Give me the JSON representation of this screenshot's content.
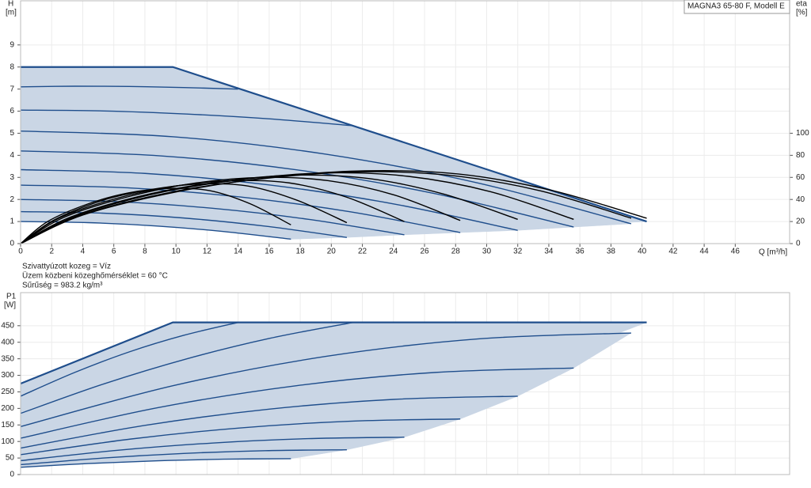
{
  "chart_data": [
    {
      "type": "line",
      "annotation": "MAGNA3 65-80 F, Modell E",
      "x_label": "Q [m³/h]",
      "y_label": "H",
      "y_unit": "[m]",
      "y2_label": "eta",
      "y2_unit": "[%]",
      "notes": [
        "Szivattyúzott kozeg = Víz",
        "Üzem közbeni közeghőmérséklet = 60 °C",
        "Sűrűség = 983.2 kg/m³"
      ],
      "xlim": [
        0,
        49.5
      ],
      "ylim": [
        0,
        11
      ],
      "y2lim": [
        0,
        220
      ],
      "xticks": [
        0,
        2,
        4,
        6,
        8,
        10,
        12,
        14,
        16,
        18,
        20,
        22,
        24,
        26,
        28,
        30,
        32,
        34,
        36,
        38,
        40,
        42,
        44,
        46
      ],
      "yticks": [
        0,
        1,
        2,
        3,
        4,
        5,
        6,
        7,
        8,
        9
      ],
      "y2ticks": [
        0,
        20,
        40,
        60,
        80,
        100
      ],
      "grid": true,
      "area_color": "#cad6e5",
      "smooth": true,
      "series": [
        {
          "color": "#1f4e8c",
          "x": [
            0,
            4.35,
            8.7,
            13.05,
            17.4
          ],
          "values": [
            1.0,
            0.95,
            0.8,
            0.55,
            0.2
          ]
        },
        {
          "color": "#1f4e8c",
          "x": [
            0,
            5.25,
            10.5,
            15.75,
            21
          ],
          "values": [
            1.45,
            1.38,
            1.16,
            0.79,
            0.28
          ]
        },
        {
          "color": "#1f4e8c",
          "x": [
            0,
            6.18,
            12.35,
            18.53,
            24.7
          ],
          "values": [
            2.0,
            1.9,
            1.6,
            1.1,
            0.4
          ]
        },
        {
          "color": "#1f4e8c",
          "x": [
            0,
            7.08,
            14.15,
            21.23,
            28.3
          ],
          "values": [
            2.65,
            2.52,
            2.11,
            1.44,
            0.5
          ]
        },
        {
          "color": "#1f4e8c",
          "x": [
            0,
            8,
            16,
            24,
            32
          ],
          "values": [
            3.35,
            3.18,
            2.66,
            1.8,
            0.6
          ]
        },
        {
          "color": "#1f4e8c",
          "x": [
            0,
            8.9,
            17.8,
            26.7,
            35.6
          ],
          "values": [
            4.2,
            3.98,
            3.34,
            2.26,
            0.75
          ]
        },
        {
          "color": "#1f4e8c",
          "x": [
            0,
            9.83,
            19.65,
            29.48,
            39.3
          ],
          "values": [
            5.1,
            4.84,
            4.05,
            2.74,
            0.9
          ]
        },
        {
          "color": "#1f4e8c",
          "x": [
            0,
            5.35,
            10.7,
            16.05,
            21.4
          ],
          "values": [
            6.05,
            6.01,
            5.87,
            5.65,
            5.34
          ]
        },
        {
          "color": "#1f4e8c",
          "x": [
            0,
            3.5,
            7,
            10.5,
            14
          ],
          "values": [
            7.1,
            7.13,
            7.12,
            7.07,
            7.0
          ]
        },
        {
          "color": "#1f4e8c",
          "x": [
            0,
            9.8,
            40.3
          ],
          "values": [
            8,
            8,
            1.0
          ],
          "smooth": false
        },
        {
          "color": "#000000",
          "axis": "y2",
          "x": [
            0,
            1.74,
            4.35,
            6.96,
            9.57,
            12.18,
            14.79,
            17.4
          ],
          "values": [
            0,
            20,
            36,
            46,
            50,
            48,
            36,
            17
          ]
        },
        {
          "color": "#000000",
          "axis": "y2",
          "x": [
            0,
            2.1,
            5.25,
            8.4,
            11.55,
            14.7,
            17.85,
            21
          ],
          "values": [
            0,
            21,
            39,
            49,
            54,
            52,
            39,
            19
          ]
        },
        {
          "color": "#000000",
          "axis": "y2",
          "x": [
            0,
            2.47,
            6.18,
            9.88,
            13.59,
            17.29,
            21,
            24.7
          ],
          "values": [
            0,
            23,
            41,
            52,
            57,
            55,
            42,
            20
          ]
        },
        {
          "color": "#000000",
          "axis": "y2",
          "x": [
            0,
            2.83,
            7.08,
            11.32,
            15.57,
            19.81,
            24.06,
            28.3
          ],
          "values": [
            0,
            24,
            43,
            55,
            60,
            57,
            44,
            21
          ]
        },
        {
          "color": "#000000",
          "axis": "y2",
          "x": [
            0,
            3.2,
            8,
            12.8,
            17.6,
            22.4,
            27.2,
            32
          ],
          "values": [
            0,
            24,
            44,
            56,
            62,
            59,
            45,
            22
          ]
        },
        {
          "color": "#000000",
          "axis": "y2",
          "x": [
            0,
            3.56,
            8.9,
            14.24,
            19.58,
            24.92,
            30.26,
            35.6
          ],
          "values": [
            0,
            25,
            46,
            58,
            64,
            61,
            47,
            22
          ]
        },
        {
          "color": "#000000",
          "axis": "y2",
          "x": [
            0,
            3.93,
            9.83,
            15.72,
            21.62,
            27.51,
            33.41,
            39.3
          ],
          "values": [
            0,
            26,
            47,
            59,
            65,
            62,
            48,
            23
          ]
        },
        {
          "color": "#000000",
          "axis": "y2",
          "x": [
            0,
            4.03,
            10.08,
            16.12,
            22.17,
            28.21,
            34.26,
            40.3
          ],
          "values": [
            0,
            26,
            47,
            60,
            66,
            63,
            48,
            23
          ]
        }
      ]
    },
    {
      "type": "line",
      "y_label": "P1",
      "y_unit": "[W]",
      "xlim": [
        0,
        49.5
      ],
      "ylim": [
        0,
        550
      ],
      "yticks": [
        0,
        50,
        100,
        150,
        200,
        250,
        300,
        350,
        400,
        450
      ],
      "grid": true,
      "area_color": "#cad6e5",
      "smooth": true,
      "series": [
        {
          "color": "#1f4e8c",
          "x": [
            0,
            4.35,
            8.7,
            13.05,
            17.4
          ],
          "values": [
            22,
            33.4,
            41.5,
            46.4,
            48
          ]
        },
        {
          "color": "#1f4e8c",
          "x": [
            0,
            5.25,
            10.5,
            15.75,
            21
          ],
          "values": [
            30,
            49.7,
            63.8,
            72.2,
            75
          ]
        },
        {
          "color": "#1f4e8c",
          "x": [
            0,
            6.18,
            12.35,
            18.53,
            24.7
          ],
          "values": [
            42,
            73.1,
            95.3,
            108.6,
            113
          ]
        },
        {
          "color": "#1f4e8c",
          "x": [
            0,
            7.08,
            14.15,
            21.23,
            28.3
          ],
          "values": [
            60,
            107.3,
            141,
            161.3,
            168
          ]
        },
        {
          "color": "#1f4e8c",
          "x": [
            0,
            8,
            16,
            24,
            32
          ],
          "values": [
            80,
            148.7,
            197.8,
            227.2,
            237
          ]
        },
        {
          "color": "#1f4e8c",
          "x": [
            0,
            8.9,
            17.8,
            26.7,
            35.6
          ],
          "values": [
            110,
            202.8,
            269,
            308.8,
            322
          ]
        },
        {
          "color": "#1f4e8c",
          "x": [
            0,
            9.83,
            19.65,
            29.48,
            39.3
          ],
          "values": [
            145,
            268.8,
            357.3,
            410.3,
            428
          ]
        },
        {
          "color": "#1f4e8c",
          "x": [
            0,
            5.35,
            10.7,
            16.05,
            21.4
          ],
          "values": [
            185,
            274,
            350,
            412,
            460
          ]
        },
        {
          "color": "#1f4e8c",
          "x": [
            0,
            3.5,
            7,
            10.5,
            14
          ],
          "values": [
            237,
            309,
            371,
            421,
            460
          ]
        },
        {
          "color": "#1f4e8c",
          "x": [
            0,
            9.8,
            40.3
          ],
          "values": [
            275,
            460,
            460
          ],
          "smooth": false
        }
      ]
    }
  ]
}
